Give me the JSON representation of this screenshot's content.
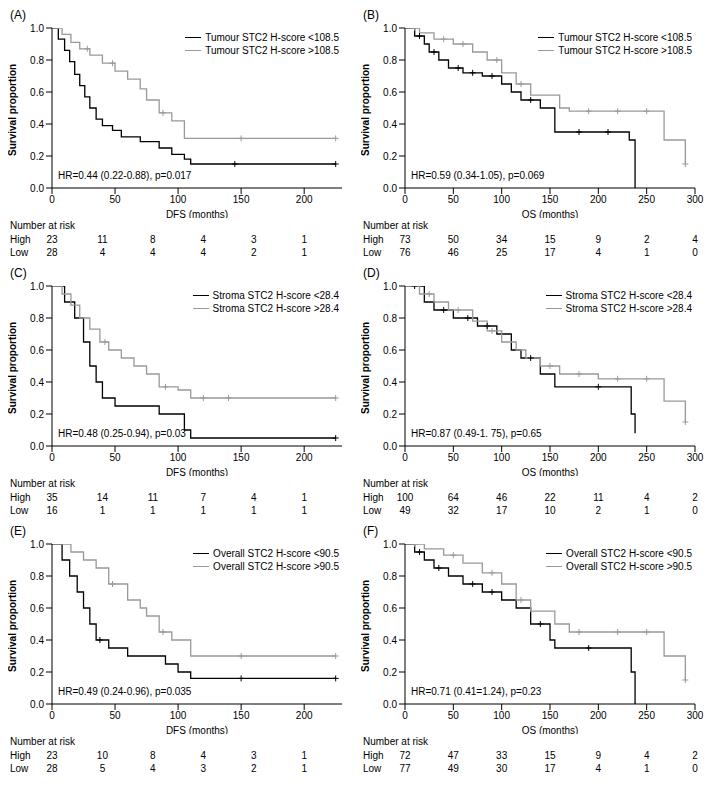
{
  "chart_data": [
    {
      "type": "line",
      "panel": "(A)",
      "x_label": "DFS (months)",
      "y_label": "Survival proportion",
      "annotation": "HR=0.44 (0.22-0.88), p=0.017",
      "legend": "upper right",
      "line_style": "step",
      "marker": "plus",
      "xlim": [
        0,
        230
      ],
      "xticks": [
        0,
        50,
        100,
        150,
        200
      ],
      "ylim": [
        0,
        1
      ],
      "yticks": [
        {
          "value": 0,
          "label": "0.0"
        },
        {
          "value": 0.2,
          "label": "0.2"
        },
        {
          "value": 0.4,
          "label": "0.4"
        },
        {
          "value": 0.6,
          "label": "0.6"
        },
        {
          "value": 0.8,
          "label": "0.8"
        },
        {
          "value": 1,
          "label": "1.0"
        }
      ],
      "series": [
        {
          "name": "Tumour STC2 H-score <108.5",
          "color": "#000000",
          "x": [
            0,
            5,
            10,
            14,
            18,
            22,
            26,
            30,
            35,
            40,
            48,
            55,
            70,
            85,
            95,
            105,
            110,
            225
          ],
          "values": [
            1,
            0.93,
            0.86,
            0.79,
            0.71,
            0.64,
            0.57,
            0.5,
            0.43,
            0.39,
            0.36,
            0.32,
            0.29,
            0.25,
            0.21,
            0.18,
            0.15,
            0.15
          ],
          "censored": [
            145,
            225
          ]
        },
        {
          "name": "Tumour STC2 H-score >108.5",
          "color": "#999999",
          "x": [
            0,
            8,
            15,
            22,
            30,
            40,
            50,
            60,
            70,
            75,
            85,
            95,
            105,
            225
          ],
          "values": [
            1,
            0.96,
            0.91,
            0.87,
            0.83,
            0.78,
            0.73,
            0.68,
            0.62,
            0.55,
            0.47,
            0.42,
            0.31,
            0.31
          ],
          "censored": [
            28,
            48,
            88,
            150,
            225
          ]
        }
      ],
      "at_risk": {
        "title": "Number at risk",
        "times": [
          0,
          40,
          80,
          120,
          160,
          200
        ],
        "rows": [
          {
            "label": "High",
            "values": [
              23,
              11,
              8,
              4,
              3,
              1
            ]
          },
          {
            "label": "Low",
            "values": [
              28,
              4,
              4,
              4,
              2,
              1
            ]
          }
        ]
      }
    },
    {
      "type": "line",
      "panel": "(B)",
      "x_label": "OS (months)",
      "y_label": "Survival proportion",
      "annotation": "HR=0.59 (0.34-1.05), p=0.069",
      "legend": "upper right",
      "line_style": "step",
      "marker": "plus",
      "xlim": [
        0,
        300
      ],
      "xticks": [
        0,
        50,
        100,
        150,
        200,
        250,
        300
      ],
      "ylim": [
        0,
        1
      ],
      "yticks": [
        {
          "value": 0,
          "label": "0.0"
        },
        {
          "value": 0.2,
          "label": "0.2"
        },
        {
          "value": 0.4,
          "label": "0.4"
        },
        {
          "value": 0.6,
          "label": "0.6"
        },
        {
          "value": 0.8,
          "label": "0.8"
        },
        {
          "value": 1,
          "label": "1.0"
        }
      ],
      "series": [
        {
          "name": "Tumour STC2 H-score <108.5",
          "color": "#000000",
          "x": [
            0,
            10,
            20,
            25,
            35,
            45,
            60,
            80,
            100,
            110,
            120,
            140,
            155,
            232,
            238
          ],
          "values": [
            1,
            0.95,
            0.9,
            0.85,
            0.8,
            0.75,
            0.72,
            0.7,
            0.65,
            0.6,
            0.55,
            0.5,
            0.35,
            0.3,
            0
          ],
          "censored": [
            15,
            30,
            55,
            70,
            90,
            130,
            180,
            210
          ]
        },
        {
          "name": "Tumour STC2 H-score >108.5",
          "color": "#999999",
          "x": [
            0,
            15,
            30,
            50,
            70,
            85,
            100,
            115,
            130,
            160,
            170,
            268,
            290
          ],
          "values": [
            1,
            0.97,
            0.93,
            0.9,
            0.85,
            0.8,
            0.72,
            0.65,
            0.58,
            0.5,
            0.48,
            0.3,
            0.15
          ],
          "censored": [
            10,
            40,
            60,
            95,
            120,
            190,
            220,
            250,
            290
          ]
        }
      ],
      "at_risk": {
        "title": "Number at risk",
        "times": [
          0,
          50,
          100,
          150,
          200,
          250,
          300
        ],
        "rows": [
          {
            "label": "High",
            "values": [
              73,
              50,
              34,
              15,
              9,
              2,
              4
            ]
          },
          {
            "label": "Low",
            "values": [
              76,
              46,
              25,
              17,
              4,
              1,
              0
            ]
          }
        ]
      }
    },
    {
      "type": "line",
      "panel": "(C)",
      "x_label": "DFS (months)",
      "y_label": "Survival proportion",
      "annotation": "HR=0.48 (0.25-0.94), p=0.03",
      "legend": "upper right",
      "line_style": "step",
      "marker": "plus",
      "xlim": [
        0,
        230
      ],
      "xticks": [
        0,
        50,
        100,
        150,
        200
      ],
      "ylim": [
        0,
        1
      ],
      "yticks": [
        {
          "value": 0,
          "label": "0.0"
        },
        {
          "value": 0.2,
          "label": "0.2"
        },
        {
          "value": 0.4,
          "label": "0.4"
        },
        {
          "value": 0.6,
          "label": "0.6"
        },
        {
          "value": 0.8,
          "label": "0.8"
        },
        {
          "value": 1,
          "label": "1.0"
        }
      ],
      "series": [
        {
          "name": "Stroma STC2 H-score <28.4",
          "color": "#000000",
          "x": [
            0,
            10,
            18,
            25,
            30,
            35,
            40,
            50,
            85,
            105,
            110,
            225
          ],
          "values": [
            1,
            0.9,
            0.8,
            0.65,
            0.5,
            0.4,
            0.3,
            0.25,
            0.2,
            0.1,
            0.05,
            0.05
          ],
          "censored": [
            225
          ]
        },
        {
          "name": "Stroma STC2 H-score >28.4",
          "color": "#999999",
          "x": [
            0,
            8,
            15,
            22,
            30,
            38,
            45,
            55,
            65,
            75,
            85,
            100,
            110,
            225
          ],
          "values": [
            1,
            0.95,
            0.88,
            0.8,
            0.73,
            0.65,
            0.6,
            0.55,
            0.5,
            0.45,
            0.37,
            0.35,
            0.3,
            0.3
          ],
          "censored": [
            42,
            90,
            120,
            140,
            225
          ]
        }
      ],
      "at_risk": {
        "title": "Number at risk",
        "times": [
          0,
          40,
          80,
          120,
          160,
          200
        ],
        "rows": [
          {
            "label": "High",
            "values": [
              35,
              14,
              11,
              7,
              4,
              1
            ]
          },
          {
            "label": "Low",
            "values": [
              16,
              1,
              1,
              1,
              1,
              1
            ]
          }
        ]
      }
    },
    {
      "type": "line",
      "panel": "(D)",
      "x_label": "OS (months)",
      "y_label": "Survival proportion",
      "annotation": "HR=0.87 (0.49-1. 75), p=0.65",
      "legend": "upper right",
      "line_style": "step",
      "marker": "plus",
      "xlim": [
        0,
        300
      ],
      "xticks": [
        0,
        50,
        100,
        150,
        200,
        250,
        300
      ],
      "ylim": [
        0,
        1
      ],
      "yticks": [
        {
          "value": 0,
          "label": "0.0"
        },
        {
          "value": 0.2,
          "label": "0.2"
        },
        {
          "value": 0.4,
          "label": "0.4"
        },
        {
          "value": 0.6,
          "label": "0.6"
        },
        {
          "value": 0.8,
          "label": "0.8"
        },
        {
          "value": 1,
          "label": "1.0"
        }
      ],
      "series": [
        {
          "name": "Stroma STC2 H-score <28.4",
          "color": "#000000",
          "x": [
            0,
            20,
            30,
            50,
            75,
            95,
            110,
            120,
            140,
            155,
            234,
            238
          ],
          "values": [
            1,
            0.9,
            0.85,
            0.8,
            0.75,
            0.7,
            0.6,
            0.55,
            0.45,
            0.37,
            0.2,
            0.08
          ],
          "censored": [
            10,
            40,
            65,
            85,
            130,
            200
          ]
        },
        {
          "name": "Stroma STC2 H-score >28.4",
          "color": "#999999",
          "x": [
            0,
            15,
            30,
            45,
            70,
            85,
            100,
            115,
            125,
            140,
            160,
            200,
            268,
            290
          ],
          "values": [
            1,
            0.95,
            0.9,
            0.85,
            0.78,
            0.72,
            0.65,
            0.6,
            0.55,
            0.5,
            0.45,
            0.42,
            0.28,
            0.15
          ],
          "censored": [
            25,
            55,
            90,
            150,
            180,
            220,
            250,
            290
          ]
        }
      ],
      "at_risk": {
        "title": "Number at risk",
        "times": [
          0,
          50,
          100,
          150,
          200,
          250,
          300
        ],
        "rows": [
          {
            "label": "High",
            "values": [
              100,
              64,
              46,
              22,
              11,
              4,
              2
            ]
          },
          {
            "label": "Low",
            "values": [
              49,
              32,
              17,
              10,
              2,
              1,
              0
            ]
          }
        ]
      }
    },
    {
      "type": "line",
      "panel": "(E)",
      "x_label": "DFS (months)",
      "y_label": "Survival proportion",
      "annotation": "HR=0.49 (0.24-0.96), p=0.035",
      "legend": "upper right",
      "line_style": "step",
      "marker": "plus",
      "xlim": [
        0,
        230
      ],
      "xticks": [
        0,
        50,
        100,
        150,
        200
      ],
      "ylim": [
        0,
        1
      ],
      "yticks": [
        {
          "value": 0,
          "label": "0.0"
        },
        {
          "value": 0.2,
          "label": "0.2"
        },
        {
          "value": 0.4,
          "label": "0.4"
        },
        {
          "value": 0.6,
          "label": "0.6"
        },
        {
          "value": 0.8,
          "label": "0.8"
        },
        {
          "value": 1,
          "label": "1.0"
        }
      ],
      "series": [
        {
          "name": "Overall STC2 H-score <90.5",
          "color": "#000000",
          "x": [
            0,
            8,
            14,
            20,
            25,
            30,
            35,
            45,
            60,
            90,
            100,
            110,
            225
          ],
          "values": [
            1,
            0.9,
            0.8,
            0.7,
            0.6,
            0.5,
            0.4,
            0.35,
            0.3,
            0.25,
            0.2,
            0.16,
            0.16
          ],
          "censored": [
            38,
            150,
            225
          ]
        },
        {
          "name": "Overall STC2 H-score >90.5",
          "color": "#999999",
          "x": [
            0,
            15,
            25,
            35,
            45,
            60,
            70,
            75,
            85,
            95,
            110,
            225
          ],
          "values": [
            1,
            0.95,
            0.9,
            0.85,
            0.75,
            0.65,
            0.6,
            0.55,
            0.45,
            0.4,
            0.3,
            0.3
          ],
          "censored": [
            48,
            88,
            150,
            225
          ]
        }
      ],
      "at_risk": {
        "title": "Number at risk",
        "times": [
          0,
          40,
          80,
          120,
          160,
          200
        ],
        "rows": [
          {
            "label": "High",
            "values": [
              23,
              10,
              8,
              4,
              3,
              1
            ]
          },
          {
            "label": "Low",
            "values": [
              28,
              5,
              4,
              3,
              2,
              1
            ]
          }
        ]
      }
    },
    {
      "type": "line",
      "panel": "(F)",
      "x_label": "OS (months)",
      "y_label": "Survival proportion",
      "annotation": "HR=0.71 (0.41=1.24), p=0.23",
      "legend": "upper right",
      "line_style": "step",
      "marker": "plus",
      "xlim": [
        0,
        300
      ],
      "xticks": [
        0,
        50,
        100,
        150,
        200,
        250,
        300
      ],
      "ylim": [
        0,
        1
      ],
      "yticks": [
        {
          "value": 0,
          "label": "0.0"
        },
        {
          "value": 0.2,
          "label": "0.2"
        },
        {
          "value": 0.4,
          "label": "0.4"
        },
        {
          "value": 0.6,
          "label": "0.6"
        },
        {
          "value": 0.8,
          "label": "0.8"
        },
        {
          "value": 1,
          "label": "1.0"
        }
      ],
      "series": [
        {
          "name": "Overall STC2 H-score <90.5",
          "color": "#000000",
          "x": [
            0,
            10,
            20,
            30,
            45,
            60,
            80,
            100,
            115,
            130,
            150,
            155,
            234,
            238
          ],
          "values": [
            1,
            0.95,
            0.9,
            0.85,
            0.8,
            0.75,
            0.7,
            0.65,
            0.6,
            0.5,
            0.4,
            0.35,
            0.2,
            0
          ],
          "censored": [
            15,
            35,
            70,
            90,
            140,
            190
          ]
        },
        {
          "name": "Overall STC2 H-score >90.5",
          "color": "#999999",
          "x": [
            0,
            20,
            40,
            60,
            80,
            100,
            115,
            130,
            155,
            170,
            268,
            290
          ],
          "values": [
            1,
            0.97,
            0.93,
            0.88,
            0.82,
            0.75,
            0.65,
            0.58,
            0.5,
            0.45,
            0.3,
            0.15
          ],
          "censored": [
            10,
            50,
            90,
            120,
            180,
            220,
            250,
            290
          ]
        }
      ],
      "at_risk": {
        "title": "Number at risk",
        "times": [
          0,
          50,
          100,
          150,
          200,
          250,
          300
        ],
        "rows": [
          {
            "label": "High",
            "values": [
              72,
              47,
              33,
              15,
              9,
              4,
              2
            ]
          },
          {
            "label": "Low",
            "values": [
              77,
              49,
              30,
              17,
              4,
              1,
              0
            ]
          }
        ]
      }
    }
  ]
}
